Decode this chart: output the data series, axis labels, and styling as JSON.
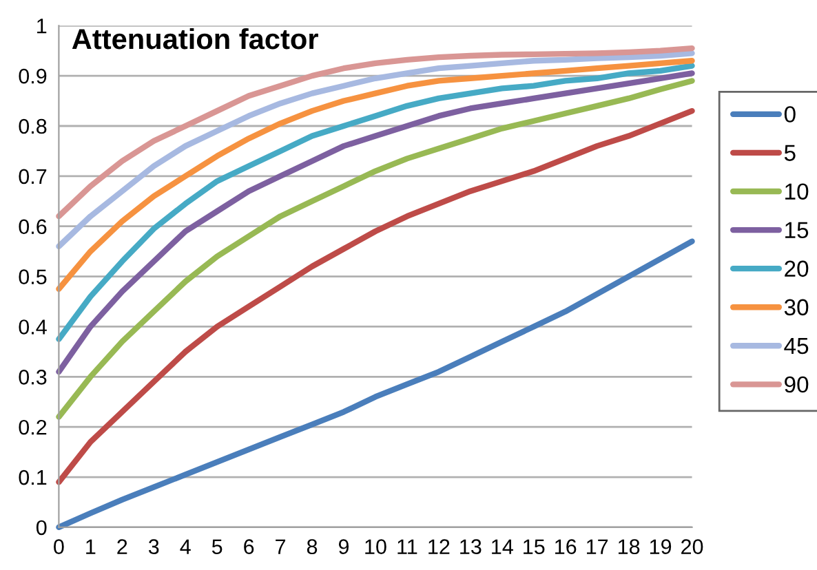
{
  "chart_data": {
    "type": "line",
    "title": "Attenuation factor",
    "x": [
      0,
      1,
      2,
      3,
      4,
      5,
      6,
      7,
      8,
      9,
      10,
      11,
      12,
      13,
      14,
      15,
      16,
      17,
      18,
      19,
      20
    ],
    "series": [
      {
        "name": "0",
        "color": "#4a7ebb",
        "values": [
          0,
          0.028,
          0.055,
          0.08,
          0.105,
          0.13,
          0.155,
          0.18,
          0.205,
          0.23,
          0.26,
          0.285,
          0.31,
          0.34,
          0.37,
          0.4,
          0.43,
          0.465,
          0.5,
          0.535,
          0.57
        ]
      },
      {
        "name": "5",
        "color": "#be4b48",
        "values": [
          0.09,
          0.17,
          0.23,
          0.29,
          0.35,
          0.4,
          0.44,
          0.48,
          0.52,
          0.555,
          0.59,
          0.62,
          0.645,
          0.67,
          0.69,
          0.71,
          0.735,
          0.76,
          0.78,
          0.805,
          0.83
        ]
      },
      {
        "name": "10",
        "color": "#98b954",
        "values": [
          0.22,
          0.3,
          0.37,
          0.43,
          0.49,
          0.54,
          0.58,
          0.62,
          0.65,
          0.68,
          0.71,
          0.735,
          0.755,
          0.775,
          0.795,
          0.81,
          0.825,
          0.84,
          0.855,
          0.873,
          0.89
        ]
      },
      {
        "name": "15",
        "color": "#7d60a0",
        "values": [
          0.31,
          0.4,
          0.47,
          0.53,
          0.59,
          0.63,
          0.67,
          0.7,
          0.73,
          0.76,
          0.78,
          0.8,
          0.82,
          0.835,
          0.845,
          0.855,
          0.865,
          0.875,
          0.885,
          0.895,
          0.905
        ]
      },
      {
        "name": "20",
        "color": "#46aac5",
        "values": [
          0.375,
          0.46,
          0.53,
          0.595,
          0.645,
          0.69,
          0.72,
          0.75,
          0.78,
          0.8,
          0.82,
          0.84,
          0.855,
          0.865,
          0.875,
          0.88,
          0.89,
          0.895,
          0.905,
          0.91,
          0.92
        ]
      },
      {
        "name": "30",
        "color": "#f69240",
        "values": [
          0.475,
          0.55,
          0.61,
          0.66,
          0.7,
          0.74,
          0.775,
          0.805,
          0.83,
          0.85,
          0.865,
          0.88,
          0.89,
          0.895,
          0.9,
          0.905,
          0.91,
          0.915,
          0.92,
          0.925,
          0.93
        ]
      },
      {
        "name": "45",
        "color": "#a7b9e1",
        "values": [
          0.56,
          0.62,
          0.67,
          0.72,
          0.76,
          0.79,
          0.82,
          0.845,
          0.865,
          0.88,
          0.895,
          0.905,
          0.915,
          0.92,
          0.925,
          0.93,
          0.932,
          0.935,
          0.937,
          0.94,
          0.945
        ]
      },
      {
        "name": "90",
        "color": "#d99694",
        "values": [
          0.62,
          0.68,
          0.73,
          0.77,
          0.8,
          0.83,
          0.86,
          0.88,
          0.9,
          0.915,
          0.925,
          0.932,
          0.937,
          0.94,
          0.942,
          0.943,
          0.944,
          0.945,
          0.947,
          0.95,
          0.955
        ]
      }
    ],
    "xlim": [
      0,
      20
    ],
    "xticks": [
      0,
      1,
      2,
      3,
      4,
      5,
      6,
      7,
      8,
      9,
      10,
      11,
      12,
      13,
      14,
      15,
      16,
      17,
      18,
      19,
      20
    ],
    "ylim": [
      0,
      1
    ],
    "yticks": [
      0,
      0.1,
      0.2,
      0.3,
      0.4,
      0.5,
      0.6,
      0.7,
      0.8,
      0.9,
      1
    ],
    "grid": "y",
    "legend": "right",
    "marker": "none",
    "line_style": "solid"
  }
}
